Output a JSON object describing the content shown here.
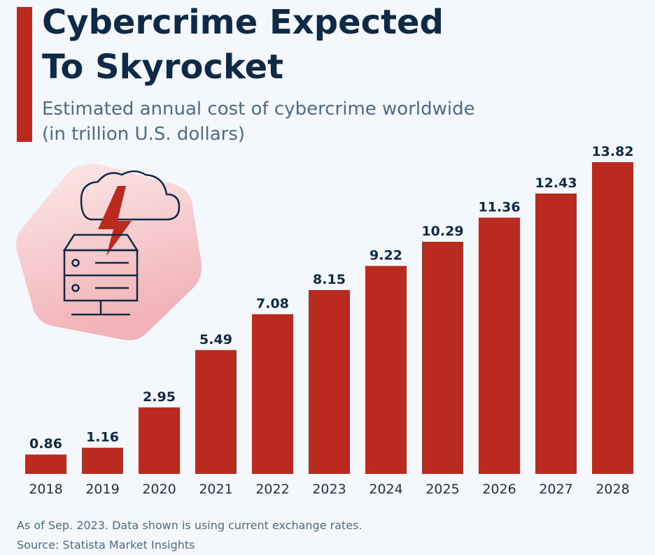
{
  "header": {
    "title_line1": "Cybercrime Expected",
    "title_line2": "To Skyrocket",
    "subtitle_line1": "Estimated annual cost of cybercrime worldwide",
    "subtitle_line2": "(in trillion U.S. dollars)"
  },
  "footer": {
    "note": "As of Sep. 2023. Data shown is using current exchange rates.",
    "source": "Source: Statista Market Insights"
  },
  "colors": {
    "bar": "#bb2a1f",
    "title": "#0f2a47",
    "subtitle": "#4f6a86",
    "background": "#f4f7fb"
  },
  "illustration": {
    "icon": "cloud-server-lightning-icon"
  },
  "chart_data": {
    "type": "bar",
    "title": "Cybercrime Expected To Skyrocket",
    "subtitle": "Estimated annual cost of cybercrime worldwide (in trillion U.S. dollars)",
    "categories": [
      "2018",
      "2019",
      "2020",
      "2021",
      "2022",
      "2023",
      "2024",
      "2025",
      "2026",
      "2027",
      "2028"
    ],
    "values": [
      0.86,
      1.16,
      2.95,
      5.49,
      7.08,
      8.15,
      9.22,
      10.29,
      11.36,
      12.43,
      13.82
    ],
    "value_labels": [
      "0.86",
      "1.16",
      "2.95",
      "5.49",
      "7.08",
      "8.15",
      "9.22",
      "10.29",
      "11.36",
      "12.43",
      "13.82"
    ],
    "xlabel": "",
    "ylabel": "",
    "ylim": [
      0,
      13.82
    ],
    "grid": false,
    "legend": "none"
  }
}
